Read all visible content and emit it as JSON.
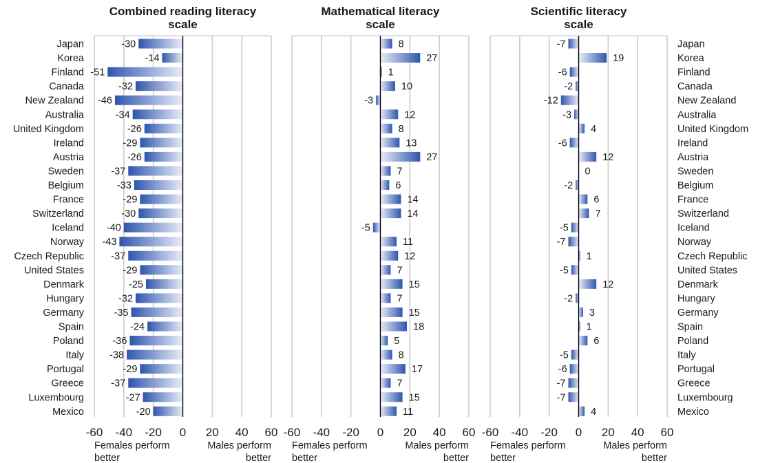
{
  "chart_data": {
    "type": "bar",
    "orientation": "horizontal",
    "countries": [
      "Japan",
      "Korea",
      "Finland",
      "Canada",
      "New Zealand",
      "Australia",
      "United Kingdom",
      "Ireland",
      "Austria",
      "Sweden",
      "Belgium",
      "France",
      "Switzerland",
      "Iceland",
      "Norway",
      "Czech Republic",
      "United States",
      "Denmark",
      "Hungary",
      "Germany",
      "Spain",
      "Poland",
      "Italy",
      "Portugal",
      "Greece",
      "Luxembourg",
      "Mexico"
    ],
    "xlim": [
      -60,
      60
    ],
    "xticks": [
      "-60",
      "-40",
      "-20",
      "0",
      "20",
      "40",
      "60"
    ],
    "side_labels": {
      "left": [
        "Females perform",
        "better"
      ],
      "right": [
        "Males perform",
        "better"
      ]
    },
    "colors": {
      "bar": "#3a5fb5",
      "bar_light": "#e8ecf7",
      "grid": "#cccccc",
      "axis": "#000000"
    },
    "panels": [
      {
        "title": [
          "Combined reading literacy",
          "scale"
        ],
        "values": [
          -30,
          -14,
          -51,
          -32,
          -46,
          -34,
          -26,
          -29,
          -26,
          -37,
          -33,
          -29,
          -30,
          -40,
          -43,
          -37,
          -29,
          -25,
          -32,
          -35,
          -24,
          -36,
          -38,
          -29,
          -37,
          -27,
          -20
        ]
      },
      {
        "title": [
          "Mathematical literacy",
          "scale"
        ],
        "values": [
          8,
          27,
          1,
          10,
          -3,
          12,
          8,
          13,
          27,
          7,
          6,
          14,
          14,
          -5,
          11,
          12,
          7,
          15,
          7,
          15,
          18,
          5,
          8,
          17,
          7,
          15,
          11
        ]
      },
      {
        "title": [
          "Scientific literacy",
          "scale"
        ],
        "values": [
          -7,
          19,
          -6,
          -2,
          -12,
          -3,
          4,
          -6,
          12,
          0,
          -2,
          6,
          7,
          -5,
          -7,
          1,
          -5,
          12,
          -2,
          3,
          1,
          6,
          -5,
          -6,
          -7,
          -7,
          4
        ]
      }
    ]
  }
}
